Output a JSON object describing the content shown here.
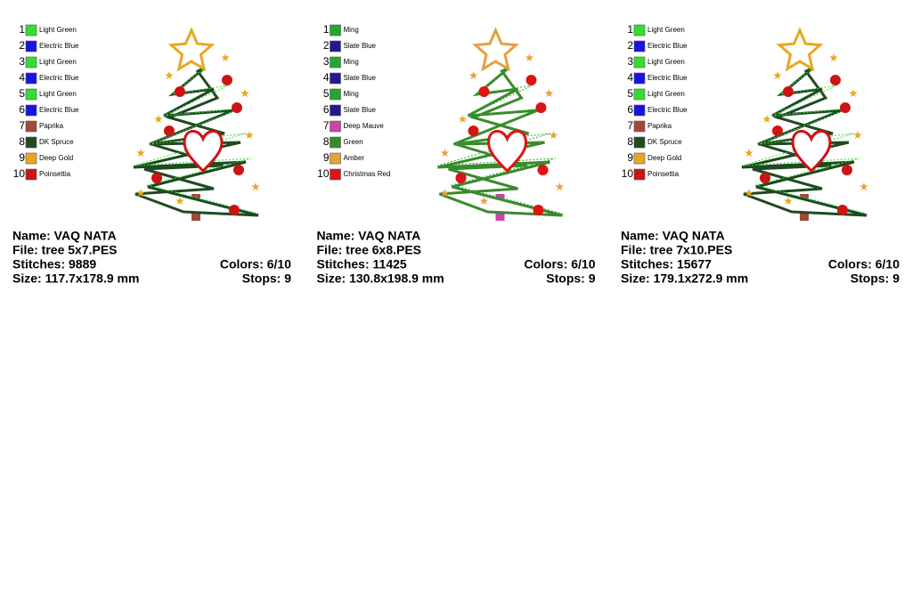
{
  "panels": [
    {
      "colors": [
        {
          "number": 1,
          "name": "Light Green",
          "color": "#33dd33"
        },
        {
          "number": 2,
          "name": "Electric Blue",
          "color": "#1414e6"
        },
        {
          "number": 3,
          "name": "Light Green",
          "color": "#33dd33"
        },
        {
          "number": 4,
          "name": "Electric Blue",
          "color": "#1414e6"
        },
        {
          "number": 5,
          "name": "Light Green",
          "color": "#33dd33"
        },
        {
          "number": 6,
          "name": "Electric Blue",
          "color": "#1414e6"
        },
        {
          "number": 7,
          "name": "Paprika",
          "color": "#a04a3a"
        },
        {
          "number": 8,
          "name": "DK Spruce",
          "color": "#1f4a22"
        },
        {
          "number": 9,
          "name": "Deep Gold",
          "color": "#e6a822"
        },
        {
          "number": 10,
          "name": "Poinsettia",
          "color": "#cc1414"
        }
      ],
      "name": "Name: VAQ NATA",
      "file": "File: tree 5x7.PES",
      "stitches": "Stitches: 9889",
      "colors_used": "Colors: 6/10",
      "size": "Size: 117.7x178.9 mm",
      "stops": "Stops: 9"
    },
    {
      "colors": [
        {
          "number": 1,
          "name": "Ming",
          "color": "#22a82a"
        },
        {
          "number": 2,
          "name": "Slate Blue",
          "color": "#1c1c8c"
        },
        {
          "number": 3,
          "name": "Ming",
          "color": "#22a82a"
        },
        {
          "number": 4,
          "name": "Slate Blue",
          "color": "#1c1c8c"
        },
        {
          "number": 5,
          "name": "Ming",
          "color": "#22a82a"
        },
        {
          "number": 6,
          "name": "Slate Blue",
          "color": "#1c1c8c"
        },
        {
          "number": 7,
          "name": "Deep Mauve",
          "color": "#cc44aa"
        },
        {
          "number": 8,
          "name": "Green",
          "color": "#3a8a2c"
        },
        {
          "number": 9,
          "name": "Amber",
          "color": "#e6a040"
        },
        {
          "number": 10,
          "name": "Christmas Red",
          "color": "#dd1414"
        }
      ],
      "name": "Name: VAQ NATA",
      "file": "File: tree 6x8.PES",
      "stitches": "Stitches: 11425",
      "colors_used": "Colors: 6/10",
      "size": "Size: 130.8x198.9 mm",
      "stops": "Stops: 9"
    },
    {
      "colors": [
        {
          "number": 1,
          "name": "Light Green",
          "color": "#33dd33"
        },
        {
          "number": 2,
          "name": "Electric Blue",
          "color": "#1414e6"
        },
        {
          "number": 3,
          "name": "Light Green",
          "color": "#33dd33"
        },
        {
          "number": 4,
          "name": "Electric Blue",
          "color": "#1414e6"
        },
        {
          "number": 5,
          "name": "Light Green",
          "color": "#33dd33"
        },
        {
          "number": 6,
          "name": "Electric Blue",
          "color": "#1414e6"
        },
        {
          "number": 7,
          "name": "Paprika",
          "color": "#a04a3a"
        },
        {
          "number": 8,
          "name": "DK Spruce",
          "color": "#1f4a22"
        },
        {
          "number": 9,
          "name": "Deep Gold",
          "color": "#e6a822"
        },
        {
          "number": 10,
          "name": "Poinsettia",
          "color": "#cc1414"
        }
      ],
      "name": "Name: VAQ NATA",
      "file": "File: tree 7x10.PES",
      "stitches": "Stitches: 15677",
      "colors_used": "Colors: 6/10",
      "size": "Size: 179.1x272.9 mm",
      "stops": "Stops: 9"
    }
  ]
}
